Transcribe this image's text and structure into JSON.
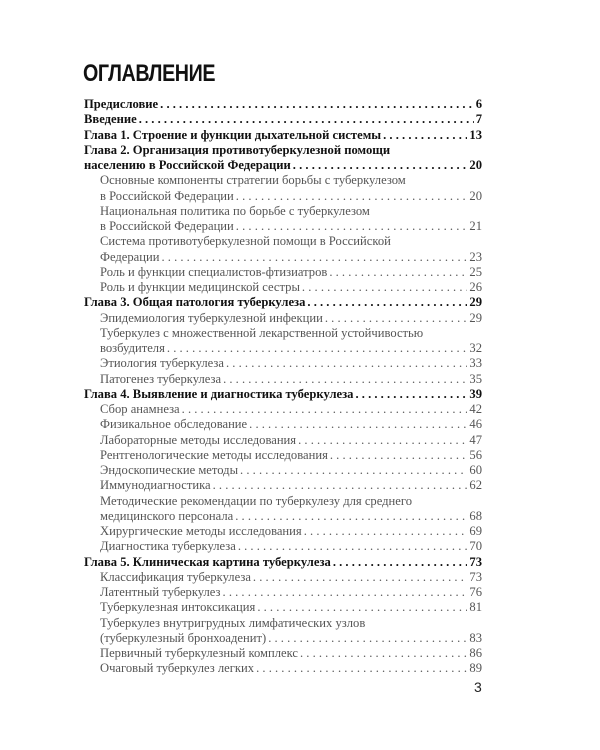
{
  "title": "ОГЛАВЛЕНИЕ",
  "page_number": "3",
  "entries": [
    {
      "level": 1,
      "lines": [
        "Предисловие"
      ],
      "page": "6"
    },
    {
      "level": 1,
      "lines": [
        "Введение"
      ],
      "page": "7"
    },
    {
      "level": 1,
      "lines": [
        "Глава 1. Строение и функции дыхательной системы"
      ],
      "page": "13"
    },
    {
      "level": 1,
      "lines": [
        "Глава 2. Организация противотуберкулезной помощи",
        "населению в Российской Федерации"
      ],
      "page": "20"
    },
    {
      "level": 2,
      "lines": [
        "Основные компоненты стратегии борьбы с туберкулезом",
        "в Российской Федерации"
      ],
      "page": "20"
    },
    {
      "level": 2,
      "lines": [
        "Национальная политика по борьбе с туберкулезом",
        "в Российской Федерации"
      ],
      "page": "21"
    },
    {
      "level": 2,
      "lines": [
        "Система противотуберкулезной помощи в Российской",
        "Федерации"
      ],
      "page": "23"
    },
    {
      "level": 2,
      "lines": [
        "Роль и функции специалистов-фтизиатров"
      ],
      "page": "25"
    },
    {
      "level": 2,
      "lines": [
        "Роль и функции медицинской сестры"
      ],
      "page": "26"
    },
    {
      "level": 1,
      "lines": [
        "Глава 3. Общая патология туберкулеза"
      ],
      "page": "29"
    },
    {
      "level": 2,
      "lines": [
        "Эпидемиология туберкулезной инфекции"
      ],
      "page": "29"
    },
    {
      "level": 2,
      "lines": [
        "Туберкулез с множественной лекарственной устойчивостью",
        "возбудителя"
      ],
      "page": "32"
    },
    {
      "level": 2,
      "lines": [
        "Этиология туберкулеза"
      ],
      "page": "33"
    },
    {
      "level": 2,
      "lines": [
        "Патогенез туберкулеза"
      ],
      "page": "35"
    },
    {
      "level": 1,
      "lines": [
        "Глава 4. Выявление и диагностика туберкулеза"
      ],
      "page": "39"
    },
    {
      "level": 2,
      "lines": [
        "Сбор анамнеза"
      ],
      "page": "42"
    },
    {
      "level": 2,
      "lines": [
        "Физикальное обследование"
      ],
      "page": "46"
    },
    {
      "level": 2,
      "lines": [
        "Лабораторные методы исследования"
      ],
      "page": "47"
    },
    {
      "level": 2,
      "lines": [
        "Рентгенологические методы исследования"
      ],
      "page": "56"
    },
    {
      "level": 2,
      "lines": [
        "Эндоскопические методы"
      ],
      "page": "60"
    },
    {
      "level": 2,
      "lines": [
        "Иммунодиагностика"
      ],
      "page": "62"
    },
    {
      "level": 2,
      "lines": [
        "Методические рекомендации по туберкулезу для среднего",
        "медицинского персонала"
      ],
      "page": "68"
    },
    {
      "level": 2,
      "lines": [
        "Хирургические методы исследования"
      ],
      "page": "69"
    },
    {
      "level": 2,
      "lines": [
        "Диагностика туберкулеза"
      ],
      "page": "70"
    },
    {
      "level": 1,
      "lines": [
        "Глава 5. Клиническая картина туберкулеза"
      ],
      "page": "73"
    },
    {
      "level": 2,
      "lines": [
        "Классификация туберкулеза"
      ],
      "page": "73"
    },
    {
      "level": 2,
      "lines": [
        "Латентный туберкулез"
      ],
      "page": "76"
    },
    {
      "level": 2,
      "lines": [
        "Туберкулезная интоксикация"
      ],
      "page": "81"
    },
    {
      "level": 2,
      "lines": [
        "Туберкулез внутригрудных лимфатических узлов",
        "(туберкулезный бронхоаденит)"
      ],
      "page": "83"
    },
    {
      "level": 2,
      "lines": [
        "Первичный туберкулезный комплекс"
      ],
      "page": "86"
    },
    {
      "level": 2,
      "lines": [
        "Очаговый туберкулез легких"
      ],
      "page": "89"
    }
  ]
}
